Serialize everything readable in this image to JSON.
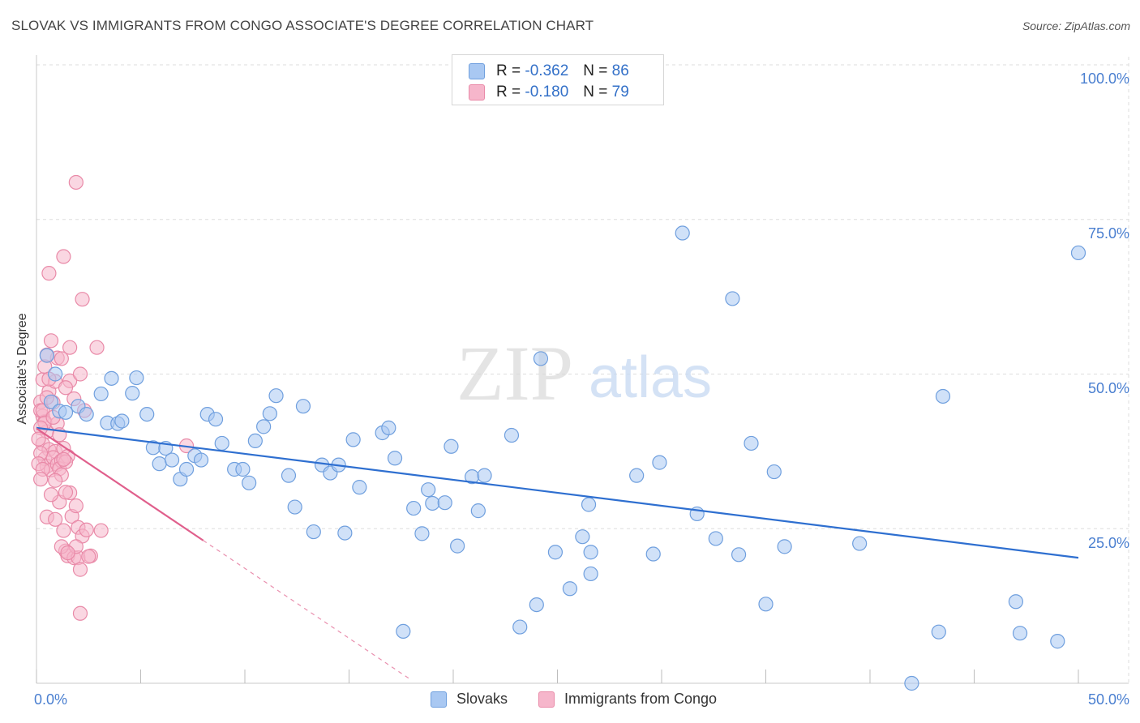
{
  "title": "SLOVAK VS IMMIGRANTS FROM CONGO ASSOCIATE'S DEGREE CORRELATION CHART",
  "source": "Source: ZipAtlas.com",
  "watermark": {
    "zip": "ZIP",
    "atlas": "atlas"
  },
  "legend_top": {
    "r_label": "R =",
    "n_label": "N =",
    "rows": [
      {
        "r": "-0.362",
        "n": "86"
      },
      {
        "r": "-0.180",
        "n": "79"
      }
    ]
  },
  "colors": {
    "blue_fill": "#a9c8f2",
    "blue_stroke": "#6f9fde",
    "blue_line": "#2e6fd0",
    "pink_fill": "#f6b6cb",
    "pink_stroke": "#e98aa8",
    "pink_line": "#e05f8c",
    "grid": "#dddddd",
    "axis_text": "#4a7fd0"
  },
  "chart_data": {
    "type": "scatter",
    "title": "SLOVAK VS IMMIGRANTS FROM CONGO ASSOCIATE'S DEGREE CORRELATION CHART",
    "xlabel": "",
    "ylabel": "Associate's Degree",
    "xlim": [
      0,
      50
    ],
    "ylim": [
      0,
      100
    ],
    "x_tick_labels": [
      "0.0%",
      "50.0%"
    ],
    "y_tick_labels": [
      "100.0%",
      "75.0%",
      "50.0%",
      "25.0%"
    ],
    "y_ticks": [
      100,
      75,
      50,
      25
    ],
    "grid": true,
    "legend_placement": "top-center",
    "series": [
      {
        "name": "Slovaks",
        "color": "#a9c8f2",
        "points": [
          [
            0.5,
            53
          ],
          [
            0.7,
            45.5
          ],
          [
            0.9,
            50
          ],
          [
            1.1,
            44
          ],
          [
            1.4,
            43.8
          ],
          [
            2.0,
            44.8
          ],
          [
            2.4,
            43.5
          ],
          [
            3.1,
            46.8
          ],
          [
            3.4,
            42.1
          ],
          [
            3.6,
            49.3
          ],
          [
            3.9,
            42
          ],
          [
            4.1,
            42.4
          ],
          [
            4.6,
            46.9
          ],
          [
            4.8,
            49.4
          ],
          [
            5.3,
            43.5
          ],
          [
            5.6,
            38.1
          ],
          [
            5.9,
            35.5
          ],
          [
            6.2,
            38
          ],
          [
            6.5,
            36.1
          ],
          [
            6.9,
            33
          ],
          [
            7.2,
            34.6
          ],
          [
            7.6,
            36.8
          ],
          [
            7.9,
            36.1
          ],
          [
            8.2,
            43.5
          ],
          [
            8.6,
            42.7
          ],
          [
            8.9,
            38.8
          ],
          [
            9.5,
            34.6
          ],
          [
            9.9,
            34.6
          ],
          [
            10.2,
            32.4
          ],
          [
            10.5,
            39.2
          ],
          [
            10.9,
            41.5
          ],
          [
            11.2,
            43.6
          ],
          [
            11.5,
            46.5
          ],
          [
            12.1,
            33.6
          ],
          [
            12.4,
            28.5
          ],
          [
            12.8,
            44.8
          ],
          [
            13.3,
            24.5
          ],
          [
            13.7,
            35.3
          ],
          [
            14.1,
            34
          ],
          [
            14.5,
            35.3
          ],
          [
            14.8,
            24.3
          ],
          [
            15.2,
            39.4
          ],
          [
            15.5,
            31.7
          ],
          [
            16.6,
            40.5
          ],
          [
            16.9,
            41.3
          ],
          [
            17.2,
            36.4
          ],
          [
            17.6,
            8.4
          ],
          [
            18.1,
            28.3
          ],
          [
            18.5,
            24.2
          ],
          [
            18.8,
            31.3
          ],
          [
            19.0,
            29.1
          ],
          [
            19.6,
            29.2
          ],
          [
            19.9,
            38.3
          ],
          [
            20.2,
            22.2
          ],
          [
            20.9,
            33.4
          ],
          [
            21.2,
            27.9
          ],
          [
            21.5,
            33.6
          ],
          [
            22.8,
            40.1
          ],
          [
            23.2,
            9.1
          ],
          [
            24.0,
            12.7
          ],
          [
            24.2,
            52.5
          ],
          [
            24.9,
            21.2
          ],
          [
            25.6,
            15.3
          ],
          [
            26.2,
            23.7
          ],
          [
            26.6,
            17.7
          ],
          [
            26.6,
            21.2
          ],
          [
            26.5,
            28.9
          ],
          [
            28.8,
            33.6
          ],
          [
            29.6,
            20.9
          ],
          [
            29.9,
            35.7
          ],
          [
            31.0,
            72.8
          ],
          [
            31.7,
            27.4
          ],
          [
            32.6,
            23.4
          ],
          [
            33.4,
            62.2
          ],
          [
            33.7,
            20.8
          ],
          [
            34.3,
            38.8
          ],
          [
            35.0,
            12.8
          ],
          [
            35.4,
            34.2
          ],
          [
            35.9,
            22.1
          ],
          [
            39.5,
            22.6
          ],
          [
            43.5,
            46.4
          ],
          [
            47.2,
            8.1
          ],
          [
            43.3,
            8.3
          ],
          [
            42.0,
            0
          ],
          [
            47.0,
            13.2
          ],
          [
            50.0,
            69.6
          ],
          [
            49.0,
            6.8
          ]
        ],
        "trend": {
          "x": [
            0,
            50
          ],
          "y": [
            41.3,
            20.3
          ]
        }
      },
      {
        "name": "Immigrants from Congo",
        "color": "#f6b6cb",
        "points": [
          [
            0.2,
            45.5
          ],
          [
            0.3,
            43.2
          ],
          [
            0.4,
            42.3
          ],
          [
            0.5,
            40.7
          ],
          [
            0.3,
            38.7
          ],
          [
            0.6,
            37.8
          ],
          [
            0.4,
            36.3
          ],
          [
            0.5,
            35.1
          ],
          [
            0.7,
            34.5
          ],
          [
            0.6,
            47.2
          ],
          [
            0.3,
            49.1
          ],
          [
            0.2,
            44.1
          ],
          [
            0.8,
            45.4
          ],
          [
            0.9,
            48.8
          ],
          [
            1.0,
            52.6
          ],
          [
            0.4,
            51.2
          ],
          [
            0.5,
            53.1
          ],
          [
            0.6,
            66.3
          ],
          [
            0.9,
            37.5
          ],
          [
            0.8,
            36.5
          ],
          [
            1.0,
            35.4
          ],
          [
            1.2,
            36.0
          ],
          [
            1.1,
            34.7
          ],
          [
            1.3,
            38.0
          ],
          [
            1.5,
            36.7
          ],
          [
            1.4,
            35.8
          ],
          [
            1.2,
            33.7
          ],
          [
            1.1,
            29.3
          ],
          [
            1.6,
            30.8
          ],
          [
            0.7,
            30.5
          ],
          [
            0.5,
            26.9
          ],
          [
            0.9,
            26.5
          ],
          [
            1.3,
            24.7
          ],
          [
            1.7,
            27.0
          ],
          [
            1.9,
            28.7
          ],
          [
            2.0,
            25.2
          ],
          [
            2.2,
            23.8
          ],
          [
            2.4,
            24.8
          ],
          [
            1.4,
            21.4
          ],
          [
            1.5,
            20.6
          ],
          [
            1.8,
            20.3
          ],
          [
            2.0,
            20.3
          ],
          [
            2.1,
            18.4
          ],
          [
            1.9,
            22.1
          ],
          [
            1.2,
            22.1
          ],
          [
            2.6,
            20.6
          ],
          [
            3.1,
            24.7
          ],
          [
            1.3,
            69.0
          ],
          [
            1.6,
            48.9
          ],
          [
            2.1,
            50.0
          ],
          [
            1.4,
            47.8
          ],
          [
            0.3,
            44.1
          ],
          [
            0.4,
            42.1
          ],
          [
            0.2,
            41.3
          ],
          [
            0.1,
            39.5
          ],
          [
            0.2,
            37.2
          ],
          [
            0.1,
            35.5
          ],
          [
            0.3,
            34.6
          ],
          [
            0.2,
            33.0
          ],
          [
            0.9,
            32.8
          ],
          [
            1.6,
            54.3
          ],
          [
            2.9,
            54.3
          ],
          [
            2.3,
            44.1
          ],
          [
            1.8,
            46.0
          ],
          [
            0.6,
            49.2
          ],
          [
            1.9,
            81.0
          ],
          [
            2.2,
            62.1
          ],
          [
            1.2,
            52.5
          ],
          [
            0.7,
            55.4
          ],
          [
            0.5,
            46.2
          ],
          [
            2.1,
            11.3
          ],
          [
            1.5,
            21.1
          ],
          [
            7.2,
            38.4
          ],
          [
            1.0,
            42.0
          ],
          [
            0.8,
            43.0
          ],
          [
            1.1,
            40.2
          ],
          [
            1.3,
            36.2
          ],
          [
            1.4,
            30.9
          ],
          [
            2.5,
            20.5
          ]
        ],
        "trend": {
          "x": [
            0,
            8
          ],
          "y": [
            41.2,
            23.1
          ]
        },
        "trend_extension": {
          "x": [
            8,
            18
          ],
          "y": [
            23.1,
            0.5
          ]
        }
      }
    ]
  },
  "legend_bottom": [
    {
      "label": "Slovaks"
    },
    {
      "label": "Immigrants from Congo"
    }
  ]
}
